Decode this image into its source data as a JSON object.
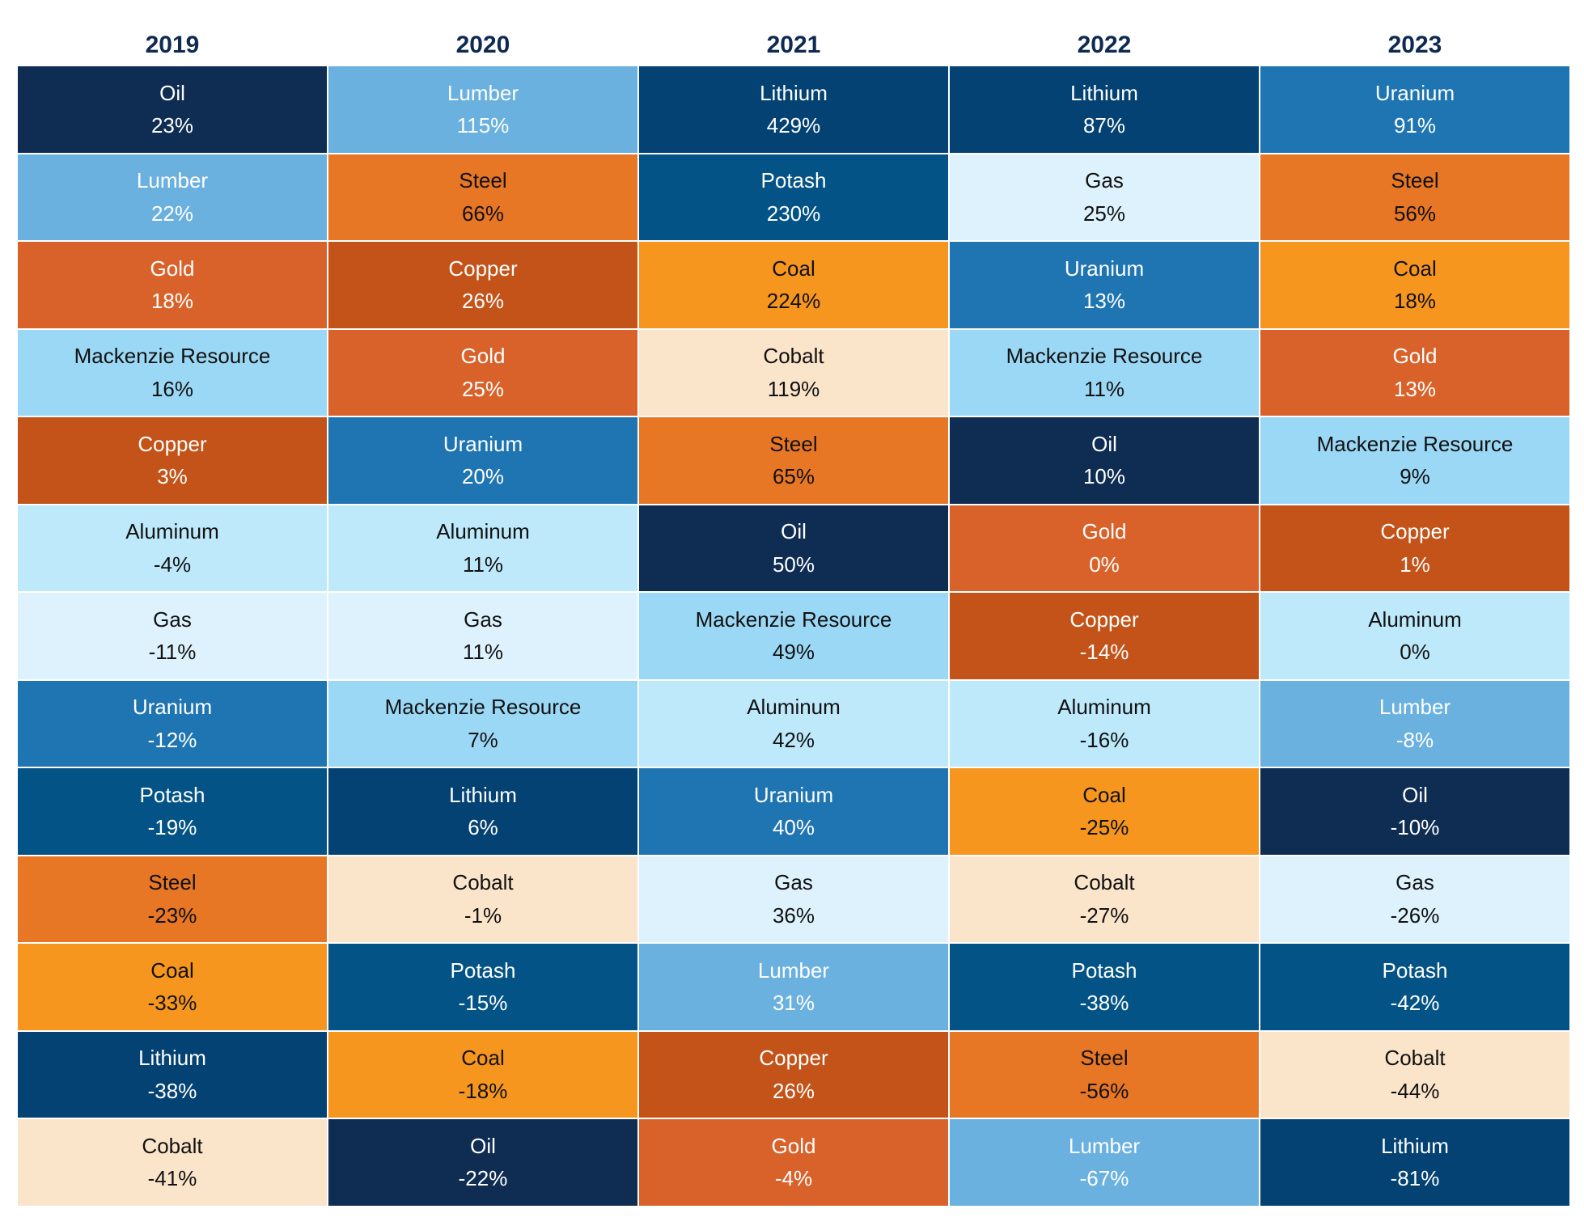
{
  "chart_data": {
    "type": "table",
    "years": [
      "2019",
      "2020",
      "2021",
      "2022",
      "2023"
    ],
    "columns": [
      {
        "year": "2019",
        "rows": [
          {
            "name": "Oil",
            "value": "23%"
          },
          {
            "name": "Lumber",
            "value": "22%"
          },
          {
            "name": "Gold",
            "value": "18%"
          },
          {
            "name": "Mackenzie Resource",
            "value": "16%"
          },
          {
            "name": "Copper",
            "value": "3%"
          },
          {
            "name": "Aluminum",
            "value": "-4%"
          },
          {
            "name": "Gas",
            "value": "-11%"
          },
          {
            "name": "Uranium",
            "value": "-12%"
          },
          {
            "name": "Potash",
            "value": "-19%"
          },
          {
            "name": "Steel",
            "value": "-23%"
          },
          {
            "name": "Coal",
            "value": "-33%"
          },
          {
            "name": "Lithium",
            "value": "-38%"
          },
          {
            "name": "Cobalt",
            "value": "-41%"
          }
        ]
      },
      {
        "year": "2020",
        "rows": [
          {
            "name": "Lumber",
            "value": "115%"
          },
          {
            "name": "Steel",
            "value": "66%"
          },
          {
            "name": "Copper",
            "value": "26%"
          },
          {
            "name": "Gold",
            "value": "25%"
          },
          {
            "name": "Uranium",
            "value": "20%"
          },
          {
            "name": "Aluminum",
            "value": "11%"
          },
          {
            "name": "Gas",
            "value": "11%"
          },
          {
            "name": "Mackenzie Resource",
            "value": "7%"
          },
          {
            "name": "Lithium",
            "value": "6%"
          },
          {
            "name": "Cobalt",
            "value": "-1%"
          },
          {
            "name": "Potash",
            "value": "-15%"
          },
          {
            "name": "Coal",
            "value": "-18%"
          },
          {
            "name": "Oil",
            "value": "-22%"
          }
        ]
      },
      {
        "year": "2021",
        "rows": [
          {
            "name": "Lithium",
            "value": "429%"
          },
          {
            "name": "Potash",
            "value": "230%"
          },
          {
            "name": "Coal",
            "value": "224%"
          },
          {
            "name": "Cobalt",
            "value": "119%"
          },
          {
            "name": "Steel",
            "value": "65%"
          },
          {
            "name": "Oil",
            "value": "50%"
          },
          {
            "name": "Mackenzie Resource",
            "value": "49%"
          },
          {
            "name": "Aluminum",
            "value": "42%"
          },
          {
            "name": "Uranium",
            "value": "40%"
          },
          {
            "name": "Gas",
            "value": "36%"
          },
          {
            "name": "Lumber",
            "value": "31%"
          },
          {
            "name": "Copper",
            "value": "26%"
          },
          {
            "name": "Gold",
            "value": "-4%"
          }
        ]
      },
      {
        "year": "2022",
        "rows": [
          {
            "name": "Lithium",
            "value": "87%"
          },
          {
            "name": "Gas",
            "value": "25%"
          },
          {
            "name": "Uranium",
            "value": "13%"
          },
          {
            "name": "Mackenzie Resource",
            "value": "11%"
          },
          {
            "name": "Oil",
            "value": "10%"
          },
          {
            "name": "Gold",
            "value": "0%"
          },
          {
            "name": "Copper",
            "value": "-14%"
          },
          {
            "name": "Aluminum",
            "value": "-16%"
          },
          {
            "name": "Coal",
            "value": "-25%"
          },
          {
            "name": "Cobalt",
            "value": "-27%"
          },
          {
            "name": "Potash",
            "value": "-38%"
          },
          {
            "name": "Steel",
            "value": "-56%"
          },
          {
            "name": "Lumber",
            "value": "-67%"
          }
        ]
      },
      {
        "year": "2023",
        "rows": [
          {
            "name": "Uranium",
            "value": "91%"
          },
          {
            "name": "Steel",
            "value": "56%"
          },
          {
            "name": "Coal",
            "value": "18%"
          },
          {
            "name": "Gold",
            "value": "13%"
          },
          {
            "name": "Mackenzie Resource",
            "value": "9%"
          },
          {
            "name": "Copper",
            "value": "1%"
          },
          {
            "name": "Aluminum",
            "value": "0%"
          },
          {
            "name": "Lumber",
            "value": "-8%"
          },
          {
            "name": "Oil",
            "value": "-10%"
          },
          {
            "name": "Gas",
            "value": "-26%"
          },
          {
            "name": "Potash",
            "value": "-42%"
          },
          {
            "name": "Cobalt",
            "value": "-44%"
          },
          {
            "name": "Lithium",
            "value": "-81%"
          }
        ]
      }
    ]
  },
  "colors": {
    "Oil": {
      "bg": "#0f2d53",
      "text": "dark"
    },
    "Lumber": {
      "bg": "#6ab1e0",
      "text": "dark"
    },
    "Gold": {
      "bg": "#d9622b",
      "text": "dark"
    },
    "Mackenzie Resource": {
      "bg": "#9bd8f5",
      "text": "light"
    },
    "Copper": {
      "bg": "#c35318",
      "text": "dark"
    },
    "Aluminum": {
      "bg": "#bde9fb",
      "text": "light"
    },
    "Gas": {
      "bg": "#ddf2fc",
      "text": "light"
    },
    "Uranium": {
      "bg": "#1f75b2",
      "text": "dark"
    },
    "Potash": {
      "bg": "#035386",
      "text": "dark"
    },
    "Steel": {
      "bg": "#e77625",
      "text": "light"
    },
    "Coal": {
      "bg": "#f6961f",
      "text": "light"
    },
    "Lithium": {
      "bg": "#034272",
      "text": "dark"
    },
    "Cobalt": {
      "bg": "#fae4ca",
      "text": "light"
    }
  }
}
